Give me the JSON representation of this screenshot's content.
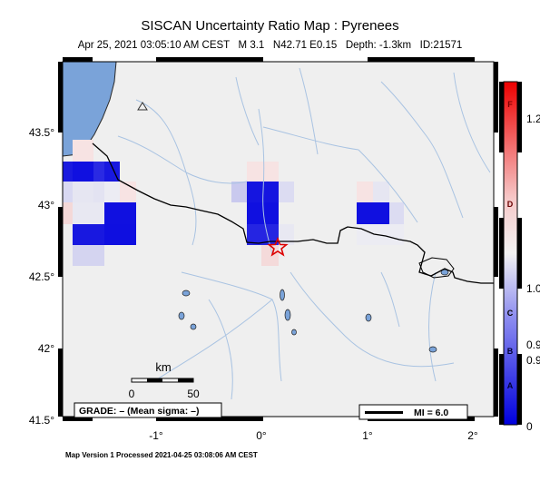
{
  "header": {
    "title": "SISCAN Uncertainty Ratio Map : Pyrenees",
    "subtitle": "Apr 25, 2021 03:05:10 AM CEST   M 3.1   N42.71 E0.15   Depth: -1.3km   ID:21571"
  },
  "footer": {
    "text": "Map Version 1 Processed 2021-04-25 03:08:06 AM CEST"
  },
  "map": {
    "lat_ticks": [
      "43.5°",
      "43°",
      "42.5°",
      "42°",
      "41.5°"
    ],
    "lon_ticks": [
      "-1°",
      "0°",
      "1°",
      "2°"
    ],
    "scale_bar": {
      "unit": "km",
      "start": "0",
      "end": "50"
    },
    "grade_box": "GRADE: – (Mean sigma: –)",
    "mi_box": "MI = 6.0",
    "epicenter": {
      "lat": 42.71,
      "lon": 0.15
    }
  },
  "colorbar": {
    "ticks": [
      "0",
      "0.9",
      "0.9",
      "1.0",
      "1.2"
    ],
    "grades": [
      "A",
      "B",
      "C",
      "D",
      "F"
    ],
    "colors": {
      "low": "#0000dd",
      "mid": "#f2f2f2",
      "high": "#ee0000"
    }
  },
  "colors": {
    "land": "#efefef",
    "sea": "#7aa3d9",
    "river": "#a9c3e2",
    "border": "#000000",
    "epicenter": "#dd0000"
  }
}
